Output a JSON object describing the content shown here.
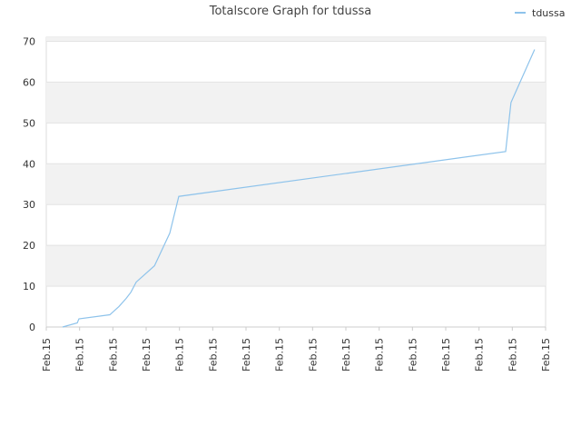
{
  "chart_data": {
    "type": "line",
    "title": "Totalscore Graph for tdussa",
    "series": [
      {
        "name": "tdussa",
        "color": "#8ec3eb",
        "x": [
          0.49,
          0.93,
          0.98,
          1.91,
          2.18,
          2.4,
          2.54,
          2.7,
          3.25,
          3.71,
          3.98,
          13.8,
          13.96,
          14.67
        ],
        "values": [
          0,
          1,
          2,
          3,
          5,
          7,
          8.5,
          11,
          15,
          23,
          32,
          43,
          55,
          68
        ]
      }
    ],
    "xlim": [
      0,
      15
    ],
    "xticks": [
      {
        "value": 0,
        "label": "Feb.15"
      },
      {
        "value": 1,
        "label": "Feb.15"
      },
      {
        "value": 2,
        "label": "Feb.15"
      },
      {
        "value": 3,
        "label": "Feb.15"
      },
      {
        "value": 4,
        "label": "Feb.15"
      },
      {
        "value": 5,
        "label": "Feb.15"
      },
      {
        "value": 6,
        "label": "Feb.15"
      },
      {
        "value": 7,
        "label": "Feb.15"
      },
      {
        "value": 8,
        "label": "Feb.15"
      },
      {
        "value": 9,
        "label": "Feb.15"
      },
      {
        "value": 10,
        "label": "Feb.15"
      },
      {
        "value": 11,
        "label": "Feb.15"
      },
      {
        "value": 12,
        "label": "Feb.15"
      },
      {
        "value": 13,
        "label": "Feb.15"
      },
      {
        "value": 14,
        "label": "Feb.15"
      },
      {
        "value": 15,
        "label": "Feb.15"
      }
    ],
    "ylim": [
      0,
      71
    ],
    "yticks": [
      0,
      10,
      20,
      30,
      40,
      50,
      60,
      70
    ],
    "grid": true,
    "legend": "top-right"
  }
}
